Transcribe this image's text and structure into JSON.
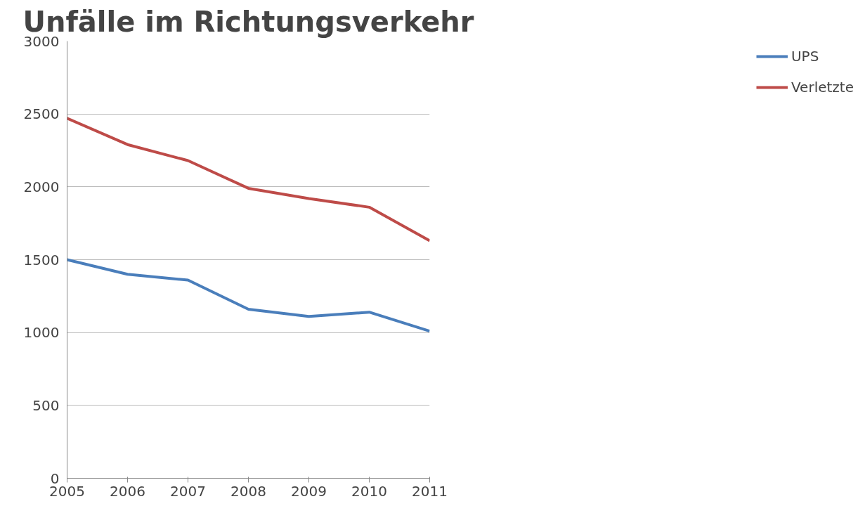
{
  "chart_data": {
    "type": "line",
    "title": "Unfälle im Richtungsverkehr",
    "x": [
      2005,
      2006,
      2007,
      2008,
      2009,
      2010,
      2011
    ],
    "series": [
      {
        "name": "UPS",
        "color": "#4a7ebb",
        "values": [
          1500,
          1400,
          1360,
          1160,
          1110,
          1140,
          1010
        ]
      },
      {
        "name": "Verletzte",
        "color": "#be4b48",
        "values": [
          2470,
          2290,
          2180,
          1990,
          1920,
          1860,
          1630
        ]
      }
    ],
    "xlim": [
      2005,
      2011
    ],
    "xticks": [
      2005,
      2006,
      2007,
      2008,
      2009,
      2010,
      2011
    ],
    "ylim": [
      0,
      3000
    ],
    "yticks": [
      0,
      500,
      1000,
      1500,
      2000,
      2500,
      3000
    ],
    "grid": "y",
    "legend": "right",
    "marker": "none",
    "line_style": "solid"
  }
}
